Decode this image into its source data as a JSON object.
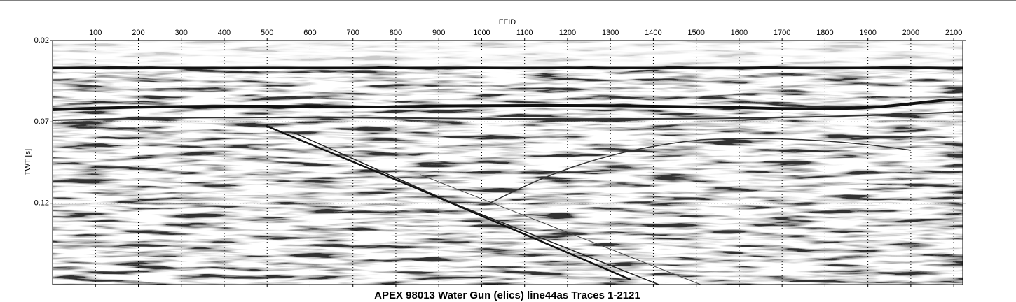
{
  "chart_data": {
    "type": "seismic-section",
    "title": "APEX 98013 Water Gun (elics) line44as Traces 1-2121",
    "x_label": "FFID",
    "y_label": "TWT [s]",
    "xlim": [
      0,
      2121
    ],
    "xticks": [
      100,
      200,
      300,
      400,
      500,
      600,
      700,
      800,
      900,
      1000,
      1100,
      1200,
      1300,
      1400,
      1500,
      1600,
      1700,
      1800,
      1900,
      2000,
      2100
    ],
    "ylim": [
      0.02,
      0.17
    ],
    "yticks": [
      0.02,
      0.07,
      0.12
    ],
    "y_inverted": true,
    "grid": true
  }
}
